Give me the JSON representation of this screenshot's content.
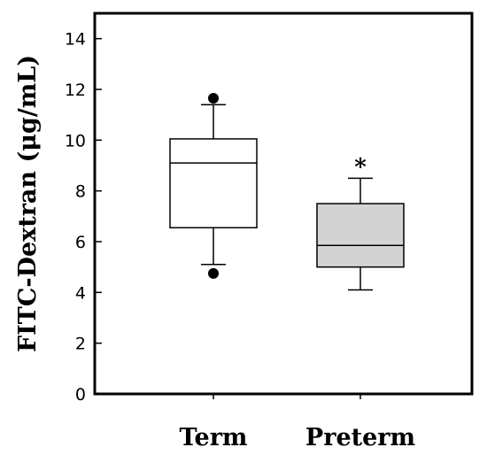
{
  "chart_data": {
    "type": "box",
    "ylabel": "FITC-Dextran (μg/mL)",
    "ylim": [
      0,
      15
    ],
    "yticks": [
      0,
      2,
      4,
      6,
      8,
      10,
      12,
      14
    ],
    "grid": false,
    "categories": [
      "Term",
      "Preterm"
    ],
    "boxes": [
      {
        "category": "Term",
        "whisker_low": 5.1,
        "q1": 6.55,
        "median": 9.1,
        "q3": 10.05,
        "whisker_high": 11.4,
        "outliers": [
          11.65,
          4.75
        ],
        "fill": "#ffffff",
        "annotation": ""
      },
      {
        "category": "Preterm",
        "whisker_low": 4.1,
        "q1": 5.0,
        "median": 5.85,
        "q3": 7.5,
        "whisker_high": 8.5,
        "outliers": [],
        "fill": "#d3d3d3",
        "annotation": "*"
      }
    ]
  }
}
